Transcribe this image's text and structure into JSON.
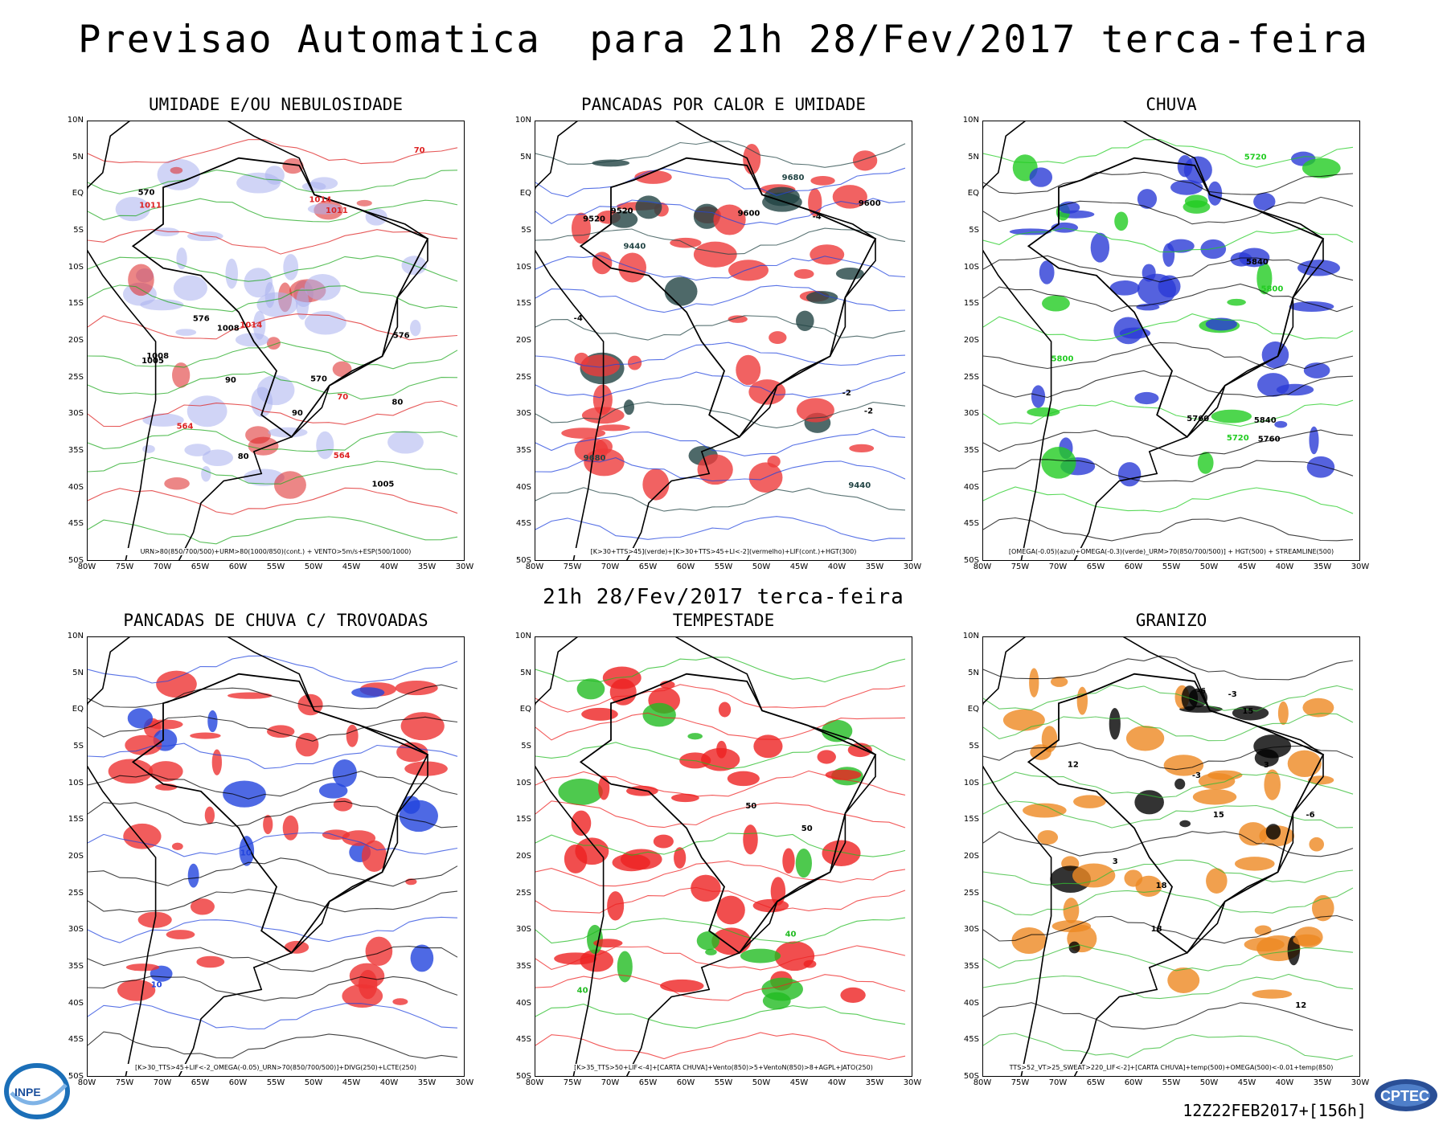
{
  "main_title": "Previsao Automatica  para 21h 28/Fev/2017 terca-feira",
  "mid_title": "21h 28/Fev/2017 terca-feira",
  "run_label": "12Z22FEB2017+[156h]",
  "logos": {
    "left": "INPE",
    "right": "CPTEC"
  },
  "lat_labels": [
    "10N",
    "5N",
    "EQ",
    "5S",
    "10S",
    "15S",
    "20S",
    "25S",
    "30S",
    "35S",
    "40S",
    "45S",
    "50S"
  ],
  "lon_labels": [
    "80W",
    "75W",
    "70W",
    "65W",
    "60W",
    "55W",
    "50W",
    "45W",
    "40W",
    "35W",
    "30W"
  ],
  "panels": [
    {
      "title": "UMIDADE E/OU NEBULOSIDADE",
      "legend": "URN>80(850/700/500)+URM>80(1000/850)(cont.) + VENTO>5m/s+ESP(500/1000)",
      "labels": [
        "1011",
        "1008",
        "1005",
        "1014",
        "576",
        "570",
        "564",
        "90",
        "80",
        "70"
      ]
    },
    {
      "title": "PANCADAS POR CALOR E UMIDADE",
      "legend": "[K>30+TTS>45](verde)+[K>30+TTS>45+LI<-2](vermelho)+LIF(cont.)+HGT(300)",
      "labels": [
        "9680",
        "9600",
        "9520",
        "9440",
        "-2",
        "-4"
      ]
    },
    {
      "title": "CHUVA",
      "legend": "[OMEGA(-0.05)(azul)+OMEGA(-0.3)(verde)_URM>70(850/700/500)] + HGT(500) + STREAMLINE(500)",
      "labels": [
        "5800",
        "5760",
        "5840",
        "5720"
      ]
    },
    {
      "title": "PANCADAS DE CHUVA C/ TROVOADAS",
      "legend": "[K>30_TTS>45+LIF<-2_OMEGA(-0.05)_URN>70(850/700/500)]+DIVG(250)+LCTE(250)",
      "labels": [
        "10"
      ]
    },
    {
      "title": "TEMPESTADE",
      "legend": "[K>35_TTS>50+LIF<-4]+[CARTA CHUVA]+Vento(850)>5+VentoN(850)>8+AGPL+JATO(250)",
      "labels": [
        "40",
        "50"
      ]
    },
    {
      "title": "GRANIZO",
      "legend": "TTS>52_VT>25_SWEAT>220_LIF<-2]+[CARTA CHUVA]+temp(500)+OMEGA(500)<-0.01+temp(850)",
      "labels": [
        "18",
        "15",
        "12",
        "-6",
        "-3",
        "3"
      ]
    }
  ]
}
